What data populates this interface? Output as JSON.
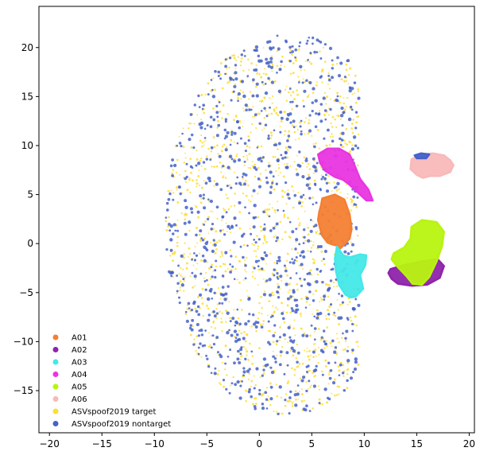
{
  "chart_data": {
    "type": "scatter",
    "title": "",
    "xlabel": "",
    "ylabel": "",
    "xlim": [
      -21,
      20.5
    ],
    "ylim": [
      -19.3,
      24.2
    ],
    "xticks": [
      -20,
      -15,
      -10,
      -5,
      0,
      5,
      10,
      15,
      20
    ],
    "yticks": [
      -15,
      -10,
      -5,
      0,
      5,
      10,
      15,
      20
    ],
    "grid": false,
    "legend_position": "lower-left",
    "series": [
      {
        "name": "A01",
        "color": "#f47f33",
        "shape": "blob",
        "outline": [
          [
            6.0,
            4.6
          ],
          [
            7.2,
            5.0
          ],
          [
            8.1,
            4.5
          ],
          [
            8.6,
            3.0
          ],
          [
            8.8,
            1.5
          ],
          [
            8.6,
            0.5
          ],
          [
            8.0,
            -0.2
          ],
          [
            7.6,
            -0.6
          ],
          [
            7.4,
            -0.2
          ],
          [
            7.0,
            -0.1
          ],
          [
            6.5,
            0.1
          ],
          [
            6.0,
            0.8
          ],
          [
            5.8,
            1.5
          ],
          [
            5.6,
            2.4
          ],
          [
            5.7,
            3.2
          ],
          [
            5.9,
            4.0
          ]
        ]
      },
      {
        "name": "A02",
        "color": "#8e24aa",
        "shape": "blob",
        "outline": [
          [
            12.5,
            -2.6
          ],
          [
            13.8,
            -2.2
          ],
          [
            15.5,
            -1.8
          ],
          [
            17.0,
            -1.6
          ],
          [
            17.6,
            -2.3
          ],
          [
            17.2,
            -3.5
          ],
          [
            16.0,
            -4.2
          ],
          [
            14.5,
            -4.3
          ],
          [
            13.2,
            -4.1
          ],
          [
            12.6,
            -3.6
          ],
          [
            12.3,
            -3.0
          ]
        ]
      },
      {
        "name": "A03",
        "color": "#45e8e8",
        "shape": "blob",
        "outline": [
          [
            7.4,
            -0.3
          ],
          [
            8.0,
            -1.2
          ],
          [
            8.6,
            -1.4
          ],
          [
            9.6,
            -1.1
          ],
          [
            10.2,
            -1.2
          ],
          [
            10.1,
            -2.2
          ],
          [
            9.6,
            -3.2
          ],
          [
            9.9,
            -4.6
          ],
          [
            9.2,
            -5.4
          ],
          [
            8.7,
            -5.5
          ],
          [
            8.2,
            -5.2
          ],
          [
            7.6,
            -4.2
          ],
          [
            7.3,
            -2.8
          ],
          [
            7.2,
            -1.5
          ]
        ]
      },
      {
        "name": "A04",
        "color": "#e935e0",
        "shape": "blob",
        "outline": [
          [
            5.6,
            9.1
          ],
          [
            6.5,
            9.7
          ],
          [
            7.6,
            9.7
          ],
          [
            8.6,
            9.1
          ],
          [
            9.0,
            8.2
          ],
          [
            9.6,
            6.6
          ],
          [
            10.4,
            5.5
          ],
          [
            10.8,
            4.4
          ],
          [
            10.2,
            4.4
          ],
          [
            9.4,
            5.2
          ],
          [
            8.6,
            6.0
          ],
          [
            8.0,
            6.5
          ],
          [
            7.2,
            6.8
          ],
          [
            6.3,
            7.4
          ],
          [
            5.8,
            8.2
          ]
        ]
      },
      {
        "name": "A05",
        "color": "#b8f410",
        "shape": "blob",
        "outline": [
          [
            14.5,
            1.7
          ],
          [
            15.5,
            2.4
          ],
          [
            16.9,
            2.2
          ],
          [
            17.6,
            1.2
          ],
          [
            17.4,
            -0.3
          ],
          [
            16.9,
            -1.8
          ],
          [
            16.2,
            -3.4
          ],
          [
            15.5,
            -4.2
          ],
          [
            14.6,
            -4.1
          ],
          [
            14.0,
            -3.3
          ],
          [
            13.2,
            -2.4
          ],
          [
            12.6,
            -1.6
          ],
          [
            12.8,
            -1.0
          ],
          [
            13.8,
            -0.4
          ],
          [
            14.4,
            0.5
          ]
        ]
      },
      {
        "name": "A06",
        "color": "#f9b9b9",
        "shape": "blob",
        "outline": [
          [
            14.5,
            8.6
          ],
          [
            15.4,
            9.1
          ],
          [
            16.6,
            9.2
          ],
          [
            17.6,
            9.0
          ],
          [
            18.2,
            8.5
          ],
          [
            18.5,
            8.0
          ],
          [
            18.2,
            7.3
          ],
          [
            17.2,
            6.9
          ],
          [
            16.3,
            6.9
          ],
          [
            15.6,
            6.7
          ],
          [
            15.0,
            7.0
          ],
          [
            14.4,
            7.6
          ]
        ]
      },
      {
        "name": "ASVspoof2019 target",
        "color": "#ffdd33",
        "shape": "scatter",
        "cloud": {
          "x_range": [
            -18,
            9.5
          ],
          "y_range": [
            -17.5,
            20
          ],
          "point_count": 1200,
          "radius_size": 1.1
        }
      },
      {
        "name": "ASVspoof2019 nontarget",
        "color": "#4562c8",
        "shape": "scatter",
        "cloud": {
          "x_range": [
            -18,
            9.5
          ],
          "y_range": [
            -17.5,
            22
          ],
          "point_count": 900,
          "radius_size": 1.6
        }
      },
      {
        "name": "",
        "color": "#4562c8",
        "shape": "blob",
        "outline": [
          [
            14.8,
            9.0
          ],
          [
            15.4,
            9.2
          ],
          [
            16.2,
            9.1
          ],
          [
            15.9,
            8.7
          ],
          [
            15.0,
            8.7
          ]
        ]
      }
    ]
  }
}
